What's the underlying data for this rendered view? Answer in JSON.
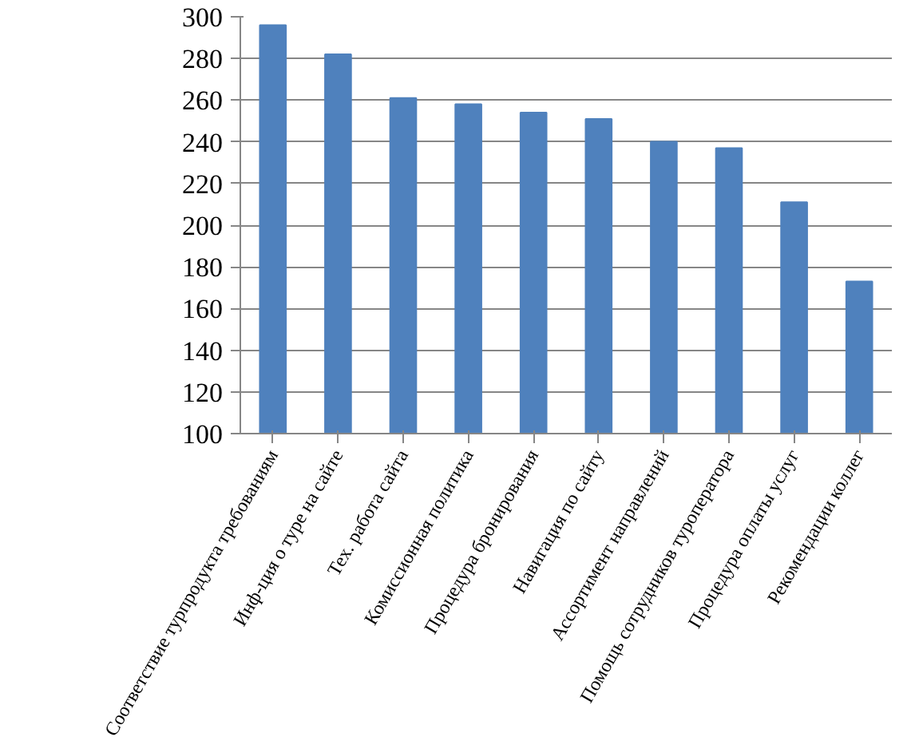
{
  "chart_data": {
    "type": "bar",
    "categories": [
      "Соответствие турпродукта требованиям",
      "Инф-ция о туре на сайте",
      "Тех. работа сайта",
      "Комиссионная политика",
      "Процедура бронирования",
      "Навигация по сайту",
      "Ассортимент направлений",
      "Помощь сотрудников туроператора",
      "Процедура оплаты услуг",
      "Рекомендации коллег"
    ],
    "values": [
      296,
      282,
      261,
      258,
      254,
      251,
      240,
      237,
      211,
      173
    ],
    "color": "#4f81bd",
    "ylim": [
      100,
      300
    ],
    "yticks": [
      100,
      120,
      140,
      160,
      180,
      200,
      220,
      240,
      260,
      280,
      300
    ],
    "grid": "y"
  }
}
